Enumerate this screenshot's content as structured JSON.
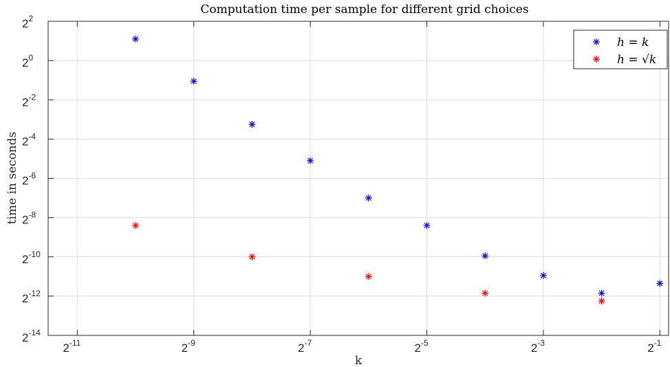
{
  "chart_data": {
    "type": "scatter",
    "title": "Computation time per sample for different grid choices",
    "xlabel": "k",
    "ylabel": "time in seconds",
    "x_scale": "log2",
    "y_scale": "log2",
    "xlim_exp": [
      -11.5,
      -0.85
    ],
    "ylim_exp": [
      -14,
      2
    ],
    "x_ticks": [
      {
        "base": "2",
        "exp": "-11",
        "value": -11
      },
      {
        "base": "2",
        "exp": "-9",
        "value": -9
      },
      {
        "base": "2",
        "exp": "-7",
        "value": -7
      },
      {
        "base": "2",
        "exp": "-5",
        "value": -5
      },
      {
        "base": "2",
        "exp": "-3",
        "value": -3
      },
      {
        "base": "2",
        "exp": "-1",
        "value": -1
      }
    ],
    "y_ticks": [
      {
        "base": "2",
        "exp": "2",
        "value": 2
      },
      {
        "base": "2",
        "exp": "0",
        "value": 0
      },
      {
        "base": "2",
        "exp": "-2",
        "value": -2
      },
      {
        "base": "2",
        "exp": "-4",
        "value": -4
      },
      {
        "base": "2",
        "exp": "-6",
        "value": -6
      },
      {
        "base": "2",
        "exp": "-8",
        "value": -8
      },
      {
        "base": "2",
        "exp": "-10",
        "value": -10
      },
      {
        "base": "2",
        "exp": "-12",
        "value": -12
      },
      {
        "base": "2",
        "exp": "-14",
        "value": -14
      }
    ],
    "grid": true,
    "legend_position": "top-right",
    "series": [
      {
        "name": "h = k",
        "color": "#0000ff",
        "marker": "asterisk",
        "x_exp": [
          -10,
          -9,
          -8,
          -7,
          -6,
          -5,
          -4,
          -3,
          -2,
          -1
        ],
        "y_exp": [
          1.1,
          -1.05,
          -3.25,
          -5.1,
          -7.0,
          -8.4,
          -9.95,
          -10.95,
          -11.85,
          -11.35
        ]
      },
      {
        "name": "h = √k",
        "color": "#ff0000",
        "marker": "asterisk",
        "x_exp": [
          -10,
          -8,
          -6,
          -4,
          -2
        ],
        "y_exp": [
          -8.4,
          -10.0,
          -11.0,
          -11.85,
          -12.25
        ]
      }
    ]
  }
}
